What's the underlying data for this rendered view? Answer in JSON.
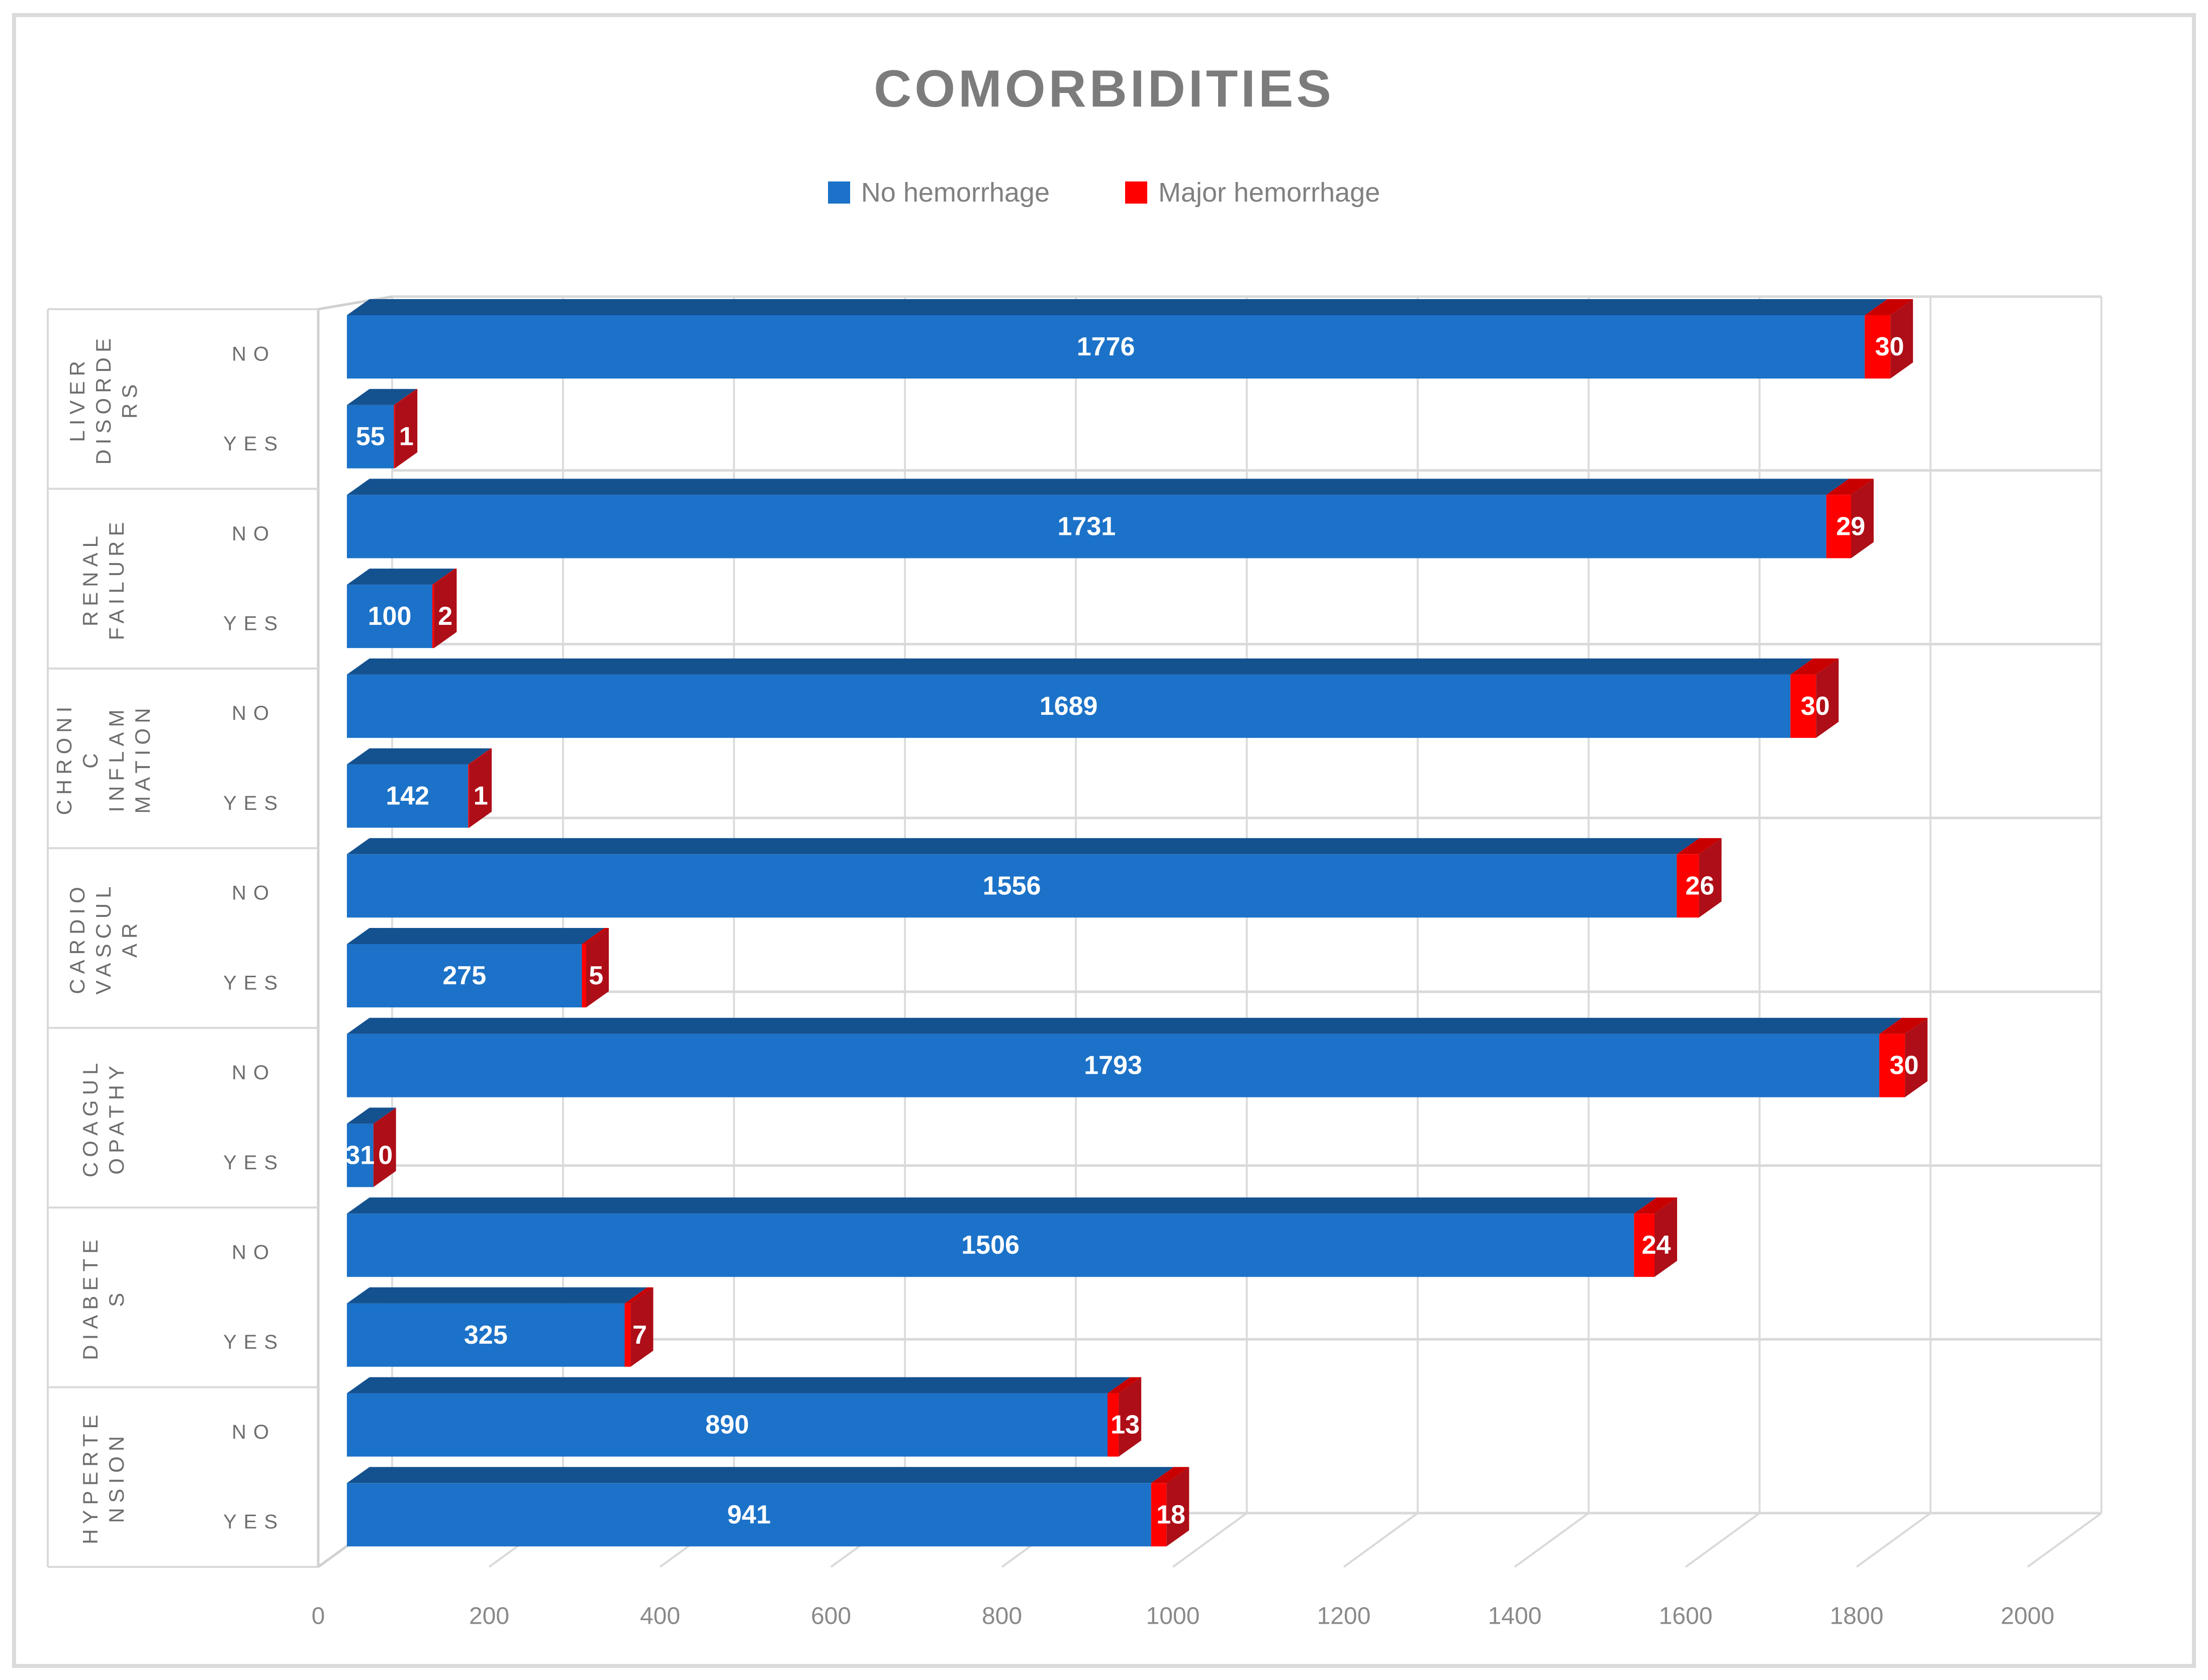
{
  "figure": {
    "title": "COMORBIDITIES"
  },
  "legend": {
    "items": [
      {
        "label": "No hemorrhage",
        "color": "#1C72C8"
      },
      {
        "label": "Major hemorrhage",
        "color": "#FF0000"
      }
    ]
  },
  "colors": {
    "title_text": "#7C7C7C",
    "legend_text": "#808080",
    "category_text": "#6E6E6E",
    "tick_text": "#8A8A8A",
    "grid": "#D9D9D9",
    "grid_light": "#DCDCDC",
    "wall_edge": "#D0D0D0",
    "border": "#DBDBDB",
    "blue_front": "#1C72C8",
    "blue_top": "#14518F",
    "red_front": "#FF0000",
    "red_top": "#C80000",
    "red_side": "#AE0E17",
    "data_label": "#FFFFFF"
  },
  "chart_data": {
    "type": "bar",
    "style": "3d",
    "orientation": "horizontal",
    "title": "COMORBIDITIES",
    "legend_position": "top",
    "grid": true,
    "xlim": [
      0,
      2000
    ],
    "x_ticks": [
      0,
      200,
      400,
      600,
      800,
      1000,
      1200,
      1400,
      1600,
      1800,
      2000
    ],
    "series": [
      {
        "name": "No hemorrhage",
        "values": [
          1776,
          55,
          1731,
          100,
          1689,
          142,
          1556,
          275,
          1793,
          31,
          1506,
          325,
          890,
          941
        ]
      },
      {
        "name": "Major hemorrhage",
        "values": [
          30,
          1,
          29,
          2,
          30,
          1,
          26,
          5,
          30,
          0,
          24,
          7,
          13,
          18
        ]
      }
    ],
    "groups": [
      {
        "label": "LIVER DISORDERS",
        "label_lines": [
          "LIVER",
          "DISORDE",
          "RS"
        ],
        "options": [
          "NO",
          "YES"
        ]
      },
      {
        "label": "RENAL FAILURE",
        "label_lines": [
          "RENAL",
          "FAILURE"
        ],
        "options": [
          "NO",
          "YES"
        ]
      },
      {
        "label": "CHRONIC INFLAMMATION",
        "label_lines": [
          "CHRONI",
          "C",
          "INFLAM",
          "MATION"
        ],
        "options": [
          "NO",
          "YES"
        ]
      },
      {
        "label": "CARDIOVASCULAR",
        "label_lines": [
          "CARDIO",
          "VASCUL",
          "AR"
        ],
        "options": [
          "NO",
          "YES"
        ]
      },
      {
        "label": "COAGULOPATHY",
        "label_lines": [
          "COAGUL",
          "OPATHY"
        ],
        "options": [
          "NO",
          "YES"
        ]
      },
      {
        "label": "DIABETES",
        "label_lines": [
          "DIABETE",
          "S"
        ],
        "options": [
          "NO",
          "YES"
        ]
      },
      {
        "label": "HYPERTENSION",
        "label_lines": [
          "HYPERTE",
          "NSION"
        ],
        "options": [
          "NO",
          "YES"
        ]
      }
    ]
  }
}
